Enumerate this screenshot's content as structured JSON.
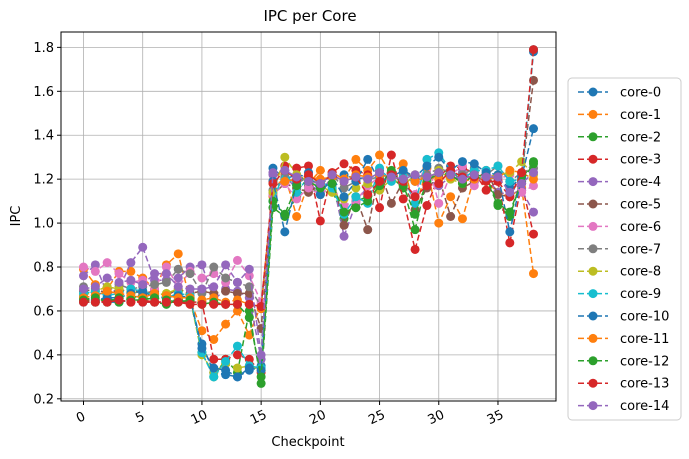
{
  "chart_data": {
    "type": "line",
    "title": "IPC per Core",
    "xlabel": "Checkpoint",
    "ylabel": "IPC",
    "xlim": [
      -1.9,
      39.9
    ],
    "ylim": [
      0.19,
      1.87
    ],
    "xticks": [
      0,
      5,
      10,
      15,
      20,
      25,
      30,
      35
    ],
    "yticks": [
      0.2,
      0.4,
      0.6,
      0.8,
      1.0,
      1.2,
      1.4,
      1.6,
      1.8
    ],
    "ytick_labels": [
      "0.2",
      "0.4",
      "0.6",
      "0.8",
      "1.0",
      "1.2",
      "1.4",
      "1.6",
      "1.8"
    ],
    "grid": true,
    "legend_position": "right",
    "line_style": "dashed",
    "marker": "circle",
    "x": [
      0,
      1,
      2,
      3,
      4,
      5,
      6,
      7,
      8,
      9,
      10,
      11,
      12,
      13,
      14,
      15,
      16,
      17,
      18,
      19,
      20,
      21,
      22,
      23,
      24,
      25,
      26,
      27,
      28,
      29,
      30,
      31,
      32,
      33,
      34,
      35,
      36,
      37,
      38
    ],
    "series": [
      {
        "name": "core-0",
        "color": "#1f77b4",
        "values": [
          0.64,
          0.64,
          0.64,
          0.64,
          0.65,
          0.64,
          0.64,
          0.64,
          0.65,
          0.64,
          0.45,
          0.32,
          0.31,
          0.3,
          0.33,
          0.35,
          1.25,
          1.2,
          1.22,
          1.21,
          1.19,
          1.21,
          1.22,
          1.2,
          1.21,
          1.22,
          1.21,
          1.2,
          1.19,
          1.21,
          1.22,
          1.21,
          1.2,
          1.19,
          1.21,
          1.2,
          1.16,
          1.21,
          1.78
        ]
      },
      {
        "name": "core-1",
        "color": "#ff7f0e",
        "values": [
          0.79,
          0.72,
          0.7,
          0.78,
          0.78,
          0.75,
          0.7,
          0.81,
          0.86,
          0.65,
          0.51,
          0.47,
          0.54,
          0.6,
          0.49,
          0.63,
          1.12,
          1.22,
          1.03,
          1.18,
          1.24,
          1.23,
          1.2,
          1.29,
          1.24,
          1.31,
          1.22,
          1.27,
          1.06,
          1.25,
          1.0,
          1.12,
          1.02,
          1.21,
          1.19,
          1.14,
          1.12,
          1.16,
          0.77
        ]
      },
      {
        "name": "core-2",
        "color": "#2ca02c",
        "values": [
          0.65,
          0.64,
          0.66,
          0.64,
          0.66,
          0.67,
          0.64,
          0.63,
          0.65,
          0.66,
          0.41,
          0.3,
          0.38,
          0.32,
          0.6,
          0.27,
          1.07,
          1.03,
          1.12,
          1.17,
          1.13,
          1.15,
          1.02,
          1.1,
          1.12,
          1.18,
          1.21,
          1.16,
          0.97,
          1.2,
          1.22,
          1.24,
          1.19,
          1.21,
          1.2,
          1.08,
          1.03,
          1.2,
          1.28
        ]
      },
      {
        "name": "core-3",
        "color": "#d62728",
        "values": [
          0.65,
          0.65,
          0.64,
          0.65,
          0.64,
          0.65,
          0.64,
          0.64,
          0.64,
          0.64,
          0.64,
          0.38,
          0.38,
          0.4,
          0.38,
          0.32,
          1.19,
          1.26,
          1.25,
          1.26,
          1.01,
          1.23,
          1.27,
          1.24,
          1.22,
          1.07,
          1.31,
          1.11,
          0.88,
          1.08,
          1.21,
          1.26,
          1.25,
          1.23,
          1.15,
          1.19,
          0.91,
          1.18,
          0.95
        ]
      },
      {
        "name": "core-4",
        "color": "#9467bd",
        "values": [
          0.76,
          0.81,
          0.68,
          0.7,
          0.82,
          0.89,
          0.74,
          0.74,
          0.75,
          0.8,
          0.81,
          0.65,
          0.7,
          0.69,
          0.66,
          0.38,
          1.22,
          1.21,
          1.16,
          1.18,
          1.14,
          1.21,
          0.94,
          1.09,
          1.17,
          1.19,
          1.21,
          1.23,
          1.2,
          1.2,
          1.17,
          1.21,
          1.23,
          1.19,
          1.21,
          1.14,
          1.13,
          1.15,
          1.05
        ]
      },
      {
        "name": "core-5",
        "color": "#8c564b",
        "values": [
          0.69,
          0.7,
          0.68,
          0.69,
          0.7,
          0.68,
          0.69,
          0.67,
          0.7,
          0.68,
          0.69,
          0.68,
          0.69,
          0.68,
          0.68,
          0.52,
          1.13,
          1.18,
          1.16,
          1.14,
          1.18,
          1.22,
          0.99,
          1.12,
          0.97,
          1.24,
          1.09,
          1.19,
          1.06,
          1.16,
          1.21,
          1.03,
          1.16,
          1.19,
          1.24,
          1.13,
          1.12,
          1.22,
          1.65
        ]
      },
      {
        "name": "core-6",
        "color": "#e377c2",
        "values": [
          0.8,
          0.78,
          0.82,
          0.77,
          0.73,
          0.74,
          0.7,
          0.8,
          0.71,
          0.78,
          0.75,
          0.77,
          0.73,
          0.83,
          0.76,
          0.64,
          1.13,
          1.18,
          1.11,
          1.16,
          1.13,
          1.17,
          1.08,
          1.1,
          1.17,
          1.21,
          1.22,
          1.18,
          1.13,
          1.29,
          1.09,
          1.22,
          1.26,
          1.17,
          1.23,
          1.2,
          1.22,
          1.14,
          1.17
        ]
      },
      {
        "name": "core-7",
        "color": "#7f7f7f",
        "values": [
          0.71,
          0.67,
          0.69,
          0.72,
          0.7,
          0.71,
          0.72,
          0.73,
          0.79,
          0.77,
          0.68,
          0.8,
          0.75,
          0.73,
          0.71,
          0.62,
          1.15,
          1.21,
          1.18,
          1.21,
          1.17,
          1.22,
          1.16,
          1.19,
          1.2,
          1.21,
          1.22,
          1.23,
          1.21,
          1.22,
          1.25,
          1.23,
          1.22,
          1.25,
          1.22,
          1.26,
          1.19,
          1.23,
          1.25
        ]
      },
      {
        "name": "core-8",
        "color": "#bcbd22",
        "values": [
          0.67,
          0.69,
          0.71,
          0.7,
          0.68,
          0.69,
          0.67,
          0.68,
          0.7,
          0.66,
          0.4,
          0.32,
          0.36,
          0.34,
          0.35,
          0.33,
          1.14,
          1.3,
          1.22,
          1.19,
          1.17,
          1.14,
          1.11,
          1.16,
          1.18,
          1.15,
          1.2,
          1.17,
          1.22,
          1.2,
          1.24,
          1.2,
          1.18,
          1.22,
          1.21,
          1.22,
          1.23,
          1.28,
          1.22
        ]
      },
      {
        "name": "core-9",
        "color": "#17becf",
        "values": [
          0.68,
          0.69,
          0.67,
          0.68,
          0.7,
          0.69,
          0.67,
          0.66,
          0.68,
          0.67,
          0.41,
          0.3,
          0.37,
          0.44,
          0.35,
          0.34,
          1.1,
          1.24,
          1.14,
          1.21,
          1.19,
          1.16,
          1.04,
          1.12,
          1.09,
          1.25,
          1.19,
          1.21,
          1.09,
          1.29,
          1.32,
          1.24,
          1.2,
          1.24,
          1.24,
          1.26,
          1.19,
          1.2,
          1.79
        ]
      },
      {
        "name": "core-10",
        "color": "#1f77b4",
        "values": [
          0.66,
          0.65,
          0.66,
          0.66,
          0.68,
          0.69,
          0.66,
          0.66,
          0.67,
          0.66,
          0.43,
          0.34,
          0.33,
          0.3,
          0.34,
          0.33,
          1.19,
          0.96,
          1.18,
          1.23,
          1.13,
          1.21,
          1.12,
          1.19,
          1.29,
          1.19,
          1.21,
          1.24,
          1.21,
          1.26,
          1.3,
          1.24,
          1.28,
          1.27,
          1.23,
          1.22,
          0.96,
          1.21,
          1.43
        ]
      },
      {
        "name": "core-11",
        "color": "#ff7f0e",
        "values": [
          0.66,
          0.67,
          0.69,
          0.68,
          0.67,
          0.66,
          0.68,
          0.67,
          0.66,
          0.66,
          0.65,
          0.66,
          0.64,
          0.65,
          0.63,
          0.61,
          1.18,
          1.19,
          1.2,
          1.21,
          1.2,
          1.21,
          1.2,
          1.22,
          1.21,
          1.22,
          1.21,
          1.2,
          1.19,
          1.21,
          1.2,
          1.21,
          1.19,
          1.2,
          1.2,
          1.21,
          1.24,
          1.23,
          1.2
        ]
      },
      {
        "name": "core-12",
        "color": "#2ca02c",
        "values": [
          0.65,
          0.66,
          0.64,
          0.66,
          0.65,
          0.65,
          0.66,
          0.65,
          0.64,
          0.65,
          0.63,
          0.64,
          0.63,
          0.63,
          0.57,
          0.3,
          1.1,
          1.04,
          1.17,
          1.19,
          1.16,
          1.18,
          1.05,
          1.07,
          1.1,
          1.17,
          1.24,
          1.17,
          1.04,
          1.19,
          1.23,
          1.22,
          1.18,
          1.22,
          1.21,
          1.09,
          1.05,
          1.19,
          1.27
        ]
      },
      {
        "name": "core-13",
        "color": "#d62728",
        "values": [
          0.64,
          0.64,
          0.64,
          0.65,
          0.64,
          0.64,
          0.64,
          0.64,
          0.64,
          0.63,
          0.63,
          0.63,
          0.63,
          0.63,
          0.63,
          0.62,
          1.18,
          1.24,
          1.2,
          1.22,
          1.18,
          1.22,
          1.19,
          1.21,
          1.13,
          1.19,
          1.22,
          1.19,
          1.12,
          1.17,
          1.18,
          1.24,
          1.21,
          1.21,
          1.19,
          1.19,
          1.12,
          1.23,
          1.79
        ]
      },
      {
        "name": "core-14",
        "color": "#9467bd",
        "values": [
          0.7,
          0.71,
          0.75,
          0.73,
          0.74,
          0.72,
          0.77,
          0.77,
          0.71,
          0.7,
          0.7,
          0.71,
          0.81,
          0.73,
          0.79,
          0.4,
          1.23,
          1.24,
          1.21,
          1.19,
          1.18,
          1.22,
          1.19,
          1.21,
          1.2,
          1.23,
          1.21,
          1.2,
          1.22,
          1.21,
          1.23,
          1.22,
          1.2,
          1.22,
          1.21,
          1.21,
          1.14,
          1.18,
          1.23
        ]
      }
    ]
  }
}
